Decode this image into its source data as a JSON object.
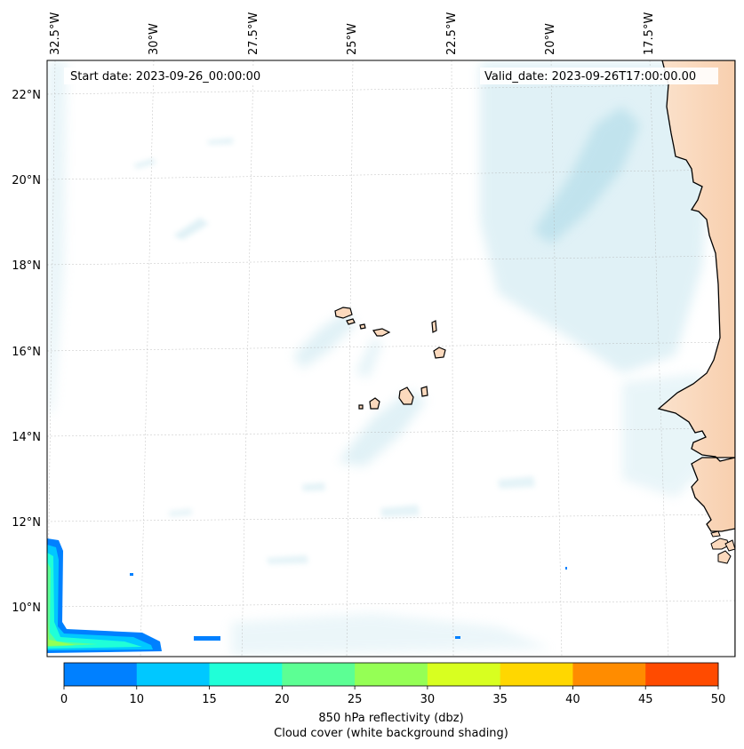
{
  "header": {
    "start_date": "Start date: 2023-09-26_00:00:00",
    "valid_date": "Valid_date: 2023-09-26T17:00:00.00"
  },
  "axes": {
    "lon_labels": [
      "32.5°W",
      "30°W",
      "27.5°W",
      "25°W",
      "22.5°W",
      "20°W",
      "17.5°W"
    ],
    "lat_labels": [
      "22°N",
      "20°N",
      "18°N",
      "16°N",
      "14°N",
      "12°N",
      "10°N"
    ]
  },
  "colorbar": {
    "ticks": [
      "0",
      "10",
      "15",
      "20",
      "25",
      "30",
      "35",
      "40",
      "45",
      "50"
    ],
    "colors": [
      "#0080ff",
      "#00c8ff",
      "#20ffd8",
      "#5cff94",
      "#95ff55",
      "#d8ff20",
      "#ffd700",
      "#ff8c00",
      "#ff4b00"
    ],
    "label_line1": "850 hPa reflectivity (dbz)",
    "label_line2": "Cloud cover (white background shading)"
  },
  "colors": {
    "land": "#fbd9bd",
    "cloud": "#a8d8e6",
    "coast": "#000000"
  }
}
